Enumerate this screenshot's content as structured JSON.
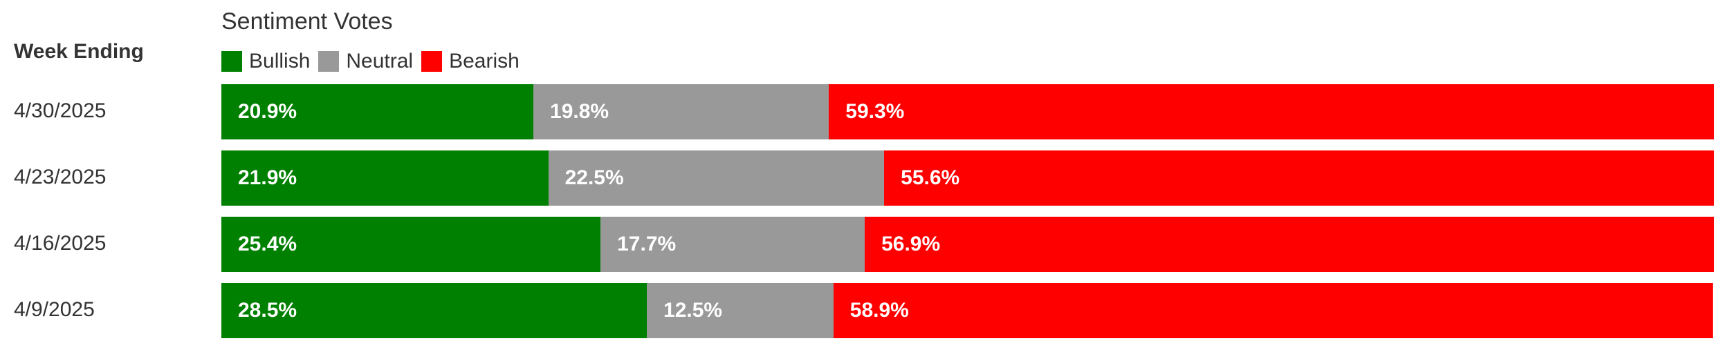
{
  "chart_data": {
    "type": "bar",
    "orientation": "horizontal",
    "stacked": true,
    "title": "Sentiment Votes",
    "row_header": "Week Ending",
    "categories": [
      "4/30/2025",
      "4/23/2025",
      "4/16/2025",
      "4/9/2025"
    ],
    "series": [
      {
        "name": "Bullish",
        "color": "#008000",
        "values": [
          20.9,
          21.9,
          25.4,
          28.5
        ],
        "labels": [
          "20.9%",
          "21.9%",
          "25.4%",
          "28.5%"
        ]
      },
      {
        "name": "Neutral",
        "color": "#999999",
        "values": [
          19.8,
          22.5,
          17.7,
          12.5
        ],
        "labels": [
          "19.8%",
          "22.5%",
          "17.7%",
          "12.5%"
        ]
      },
      {
        "name": "Bearish",
        "color": "#ff0000",
        "values": [
          59.3,
          55.6,
          56.9,
          58.9
        ],
        "labels": [
          "59.3%",
          "55.6%",
          "56.9%",
          "58.9%"
        ]
      }
    ],
    "xlim": [
      0,
      100
    ],
    "legend_position": "top-left",
    "grid": false
  }
}
